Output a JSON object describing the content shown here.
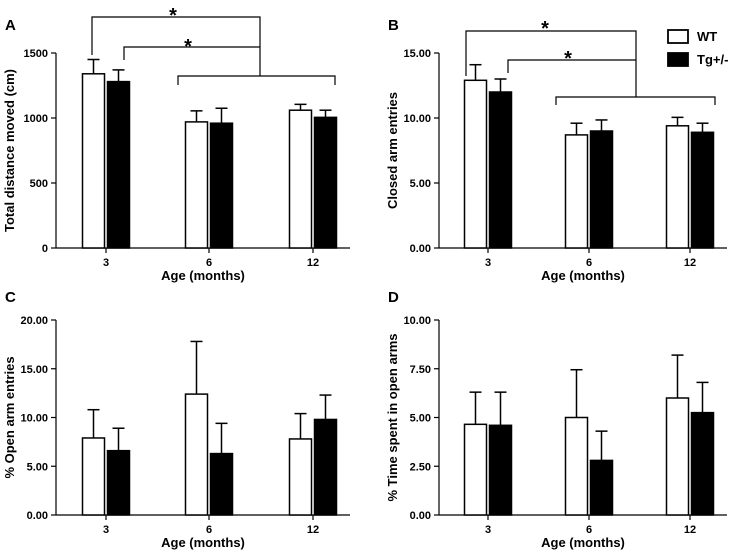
{
  "chart_data": [
    {
      "panel": "A",
      "type": "bar",
      "categories": [
        "3",
        "6",
        "12"
      ],
      "series": [
        {
          "name": "WT",
          "values": [
            1340,
            970,
            1060
          ],
          "errors": [
            110,
            85,
            45
          ]
        },
        {
          "name": "Tg+/-",
          "values": [
            1280,
            960,
            1005
          ],
          "errors": [
            90,
            115,
            55
          ]
        }
      ],
      "xlabel": "Age (months)",
      "ylabel": "Total distance moved (cm)",
      "ylim": [
        0,
        1500
      ],
      "yticks": [
        "0",
        "500",
        "1000",
        "1500"
      ],
      "significance": [
        "*",
        "*"
      ]
    },
    {
      "panel": "B",
      "type": "bar",
      "categories": [
        "3",
        "6",
        "12"
      ],
      "series": [
        {
          "name": "WT",
          "values": [
            12.9,
            8.7,
            9.4
          ],
          "errors": [
            1.2,
            0.9,
            0.65
          ]
        },
        {
          "name": "Tg+/-",
          "values": [
            12.0,
            9.0,
            8.9
          ],
          "errors": [
            1.0,
            0.85,
            0.7
          ]
        }
      ],
      "xlabel": "Age (months)",
      "ylabel": "Closed arm entries",
      "ylim": [
        0,
        15
      ],
      "yticks": [
        "0.00",
        "5.00",
        "10.00",
        "15.00"
      ],
      "significance": [
        "*",
        "*"
      ],
      "legend": [
        {
          "label": "WT",
          "fill": "#ffffff"
        },
        {
          "label": "Tg+/-",
          "fill": "#000000"
        }
      ]
    },
    {
      "panel": "C",
      "type": "bar",
      "categories": [
        "3",
        "6",
        "12"
      ],
      "series": [
        {
          "name": "WT",
          "values": [
            7.9,
            12.4,
            7.8
          ],
          "errors": [
            2.9,
            5.4,
            2.6
          ]
        },
        {
          "name": "Tg+/-",
          "values": [
            6.6,
            6.3,
            9.8
          ],
          "errors": [
            2.3,
            3.1,
            2.5
          ]
        }
      ],
      "xlabel": "Age (months)",
      "ylabel": "% Open arm entries",
      "ylim": [
        0,
        20
      ],
      "yticks": [
        "0.00",
        "5.00",
        "10.00",
        "15.00",
        "20.00"
      ]
    },
    {
      "panel": "D",
      "type": "bar",
      "categories": [
        "3",
        "6",
        "12"
      ],
      "series": [
        {
          "name": "WT",
          "values": [
            4.65,
            5.0,
            6.0
          ],
          "errors": [
            1.65,
            2.45,
            2.2
          ]
        },
        {
          "name": "Tg+/-",
          "values": [
            4.6,
            2.8,
            5.25
          ],
          "errors": [
            1.7,
            1.5,
            1.55
          ]
        }
      ],
      "xlabel": "Age (months)",
      "ylabel": "% Time spent in open arms",
      "ylim": [
        0,
        10
      ],
      "yticks": [
        "0.00",
        "2.50",
        "5.00",
        "7.50",
        "10.00"
      ]
    }
  ],
  "colors": {
    "wt_fill": "#ffffff",
    "tg_fill": "#000000",
    "stroke": "#000000"
  }
}
